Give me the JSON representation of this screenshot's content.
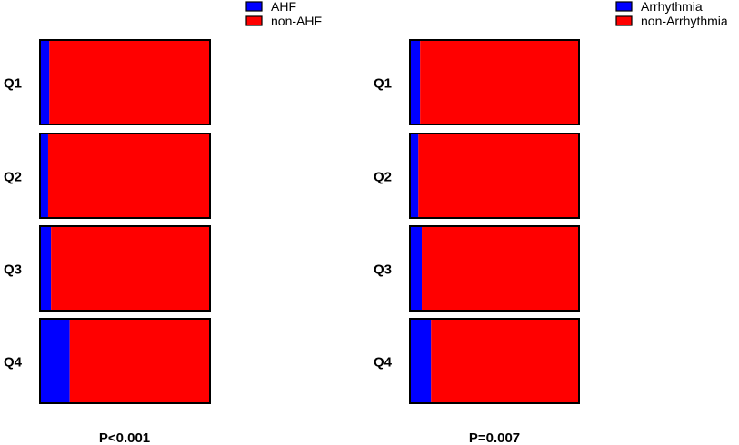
{
  "chart_data": [
    {
      "type": "bar",
      "stacked": true,
      "normalized": true,
      "orientation": "horizontal",
      "categories": [
        "Q1",
        "Q2",
        "Q3",
        "Q4"
      ],
      "series": [
        {
          "name": "AHF",
          "color": "#0000ff",
          "values": [
            5.5,
            4.8,
            6.5,
            17.5
          ]
        },
        {
          "name": "non-AHF",
          "color": "#ff0000",
          "values": [
            94.5,
            95.2,
            93.5,
            82.5
          ]
        }
      ],
      "annotation": "P<0.001",
      "legend": "top-right",
      "grid": false
    },
    {
      "type": "bar",
      "stacked": true,
      "normalized": true,
      "orientation": "horizontal",
      "categories": [
        "Q1",
        "Q2",
        "Q3",
        "Q4"
      ],
      "series": [
        {
          "name": "Arrhythmia",
          "color": "#0000ff",
          "values": [
            6.0,
            5.0,
            7.0,
            12.5
          ]
        },
        {
          "name": "non-Arrhythmia",
          "color": "#ff0000",
          "values": [
            94.0,
            95.0,
            93.0,
            87.5
          ]
        }
      ],
      "annotation": "P=0.007",
      "legend": "top-right",
      "grid": false
    }
  ]
}
